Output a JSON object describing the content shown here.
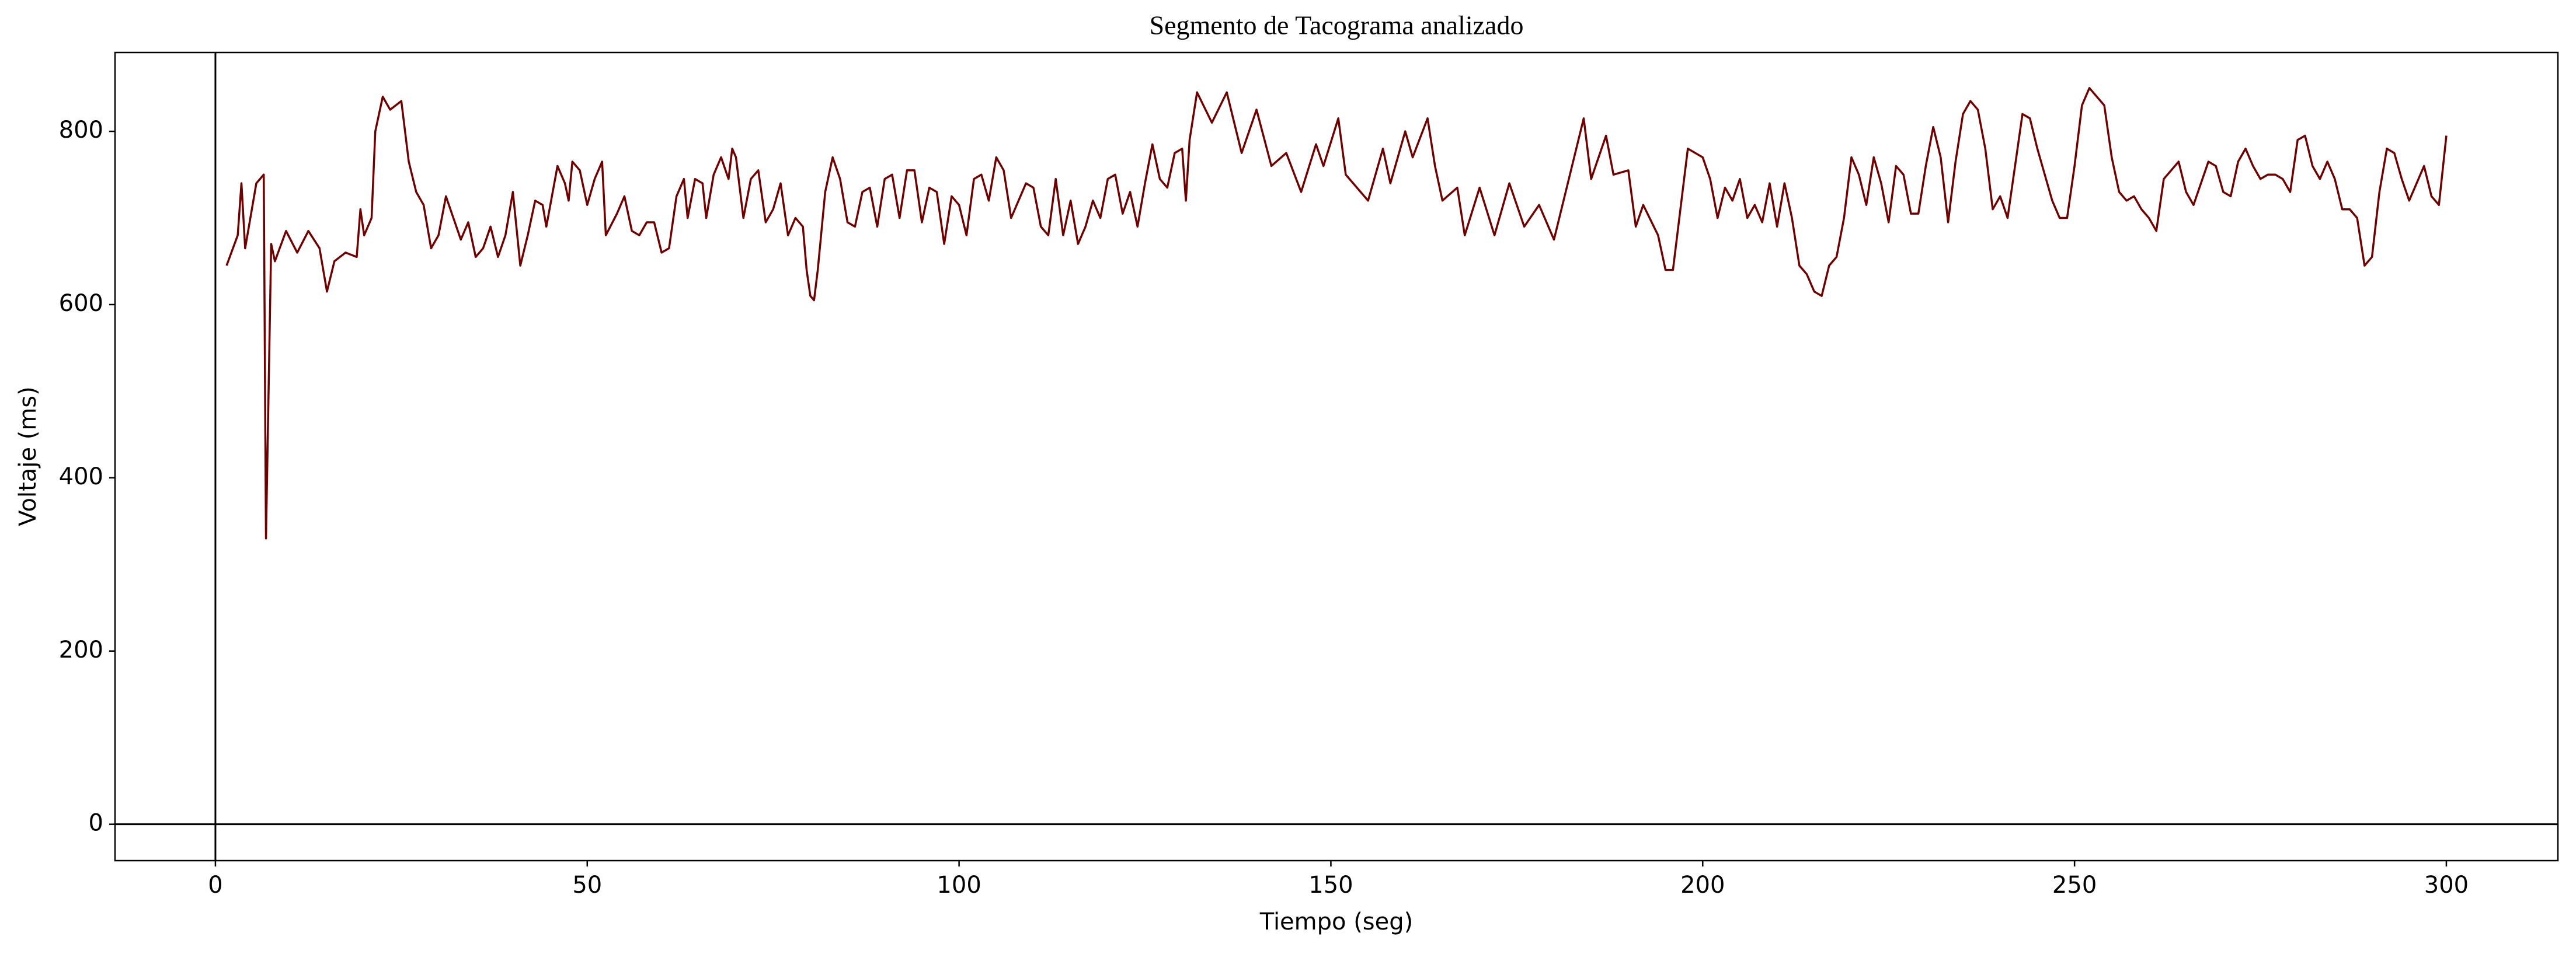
{
  "chart_data": {
    "type": "line",
    "title": "Segmento de Tacograma analizado",
    "x_label": "Tiempo (seg)",
    "y_label": "Voltaje (ms)",
    "color": "#6e0000",
    "x": [
      1.5,
      3,
      3.5,
      4,
      5.5,
      6.5,
      6.8,
      7.5,
      8,
      9.5,
      11,
      12.5,
      14,
      15,
      16,
      17.5,
      19,
      19.5,
      20,
      21,
      21.5,
      22.5,
      23.5,
      25,
      26,
      27,
      28,
      29,
      30,
      31,
      32,
      33,
      34,
      35,
      36,
      37,
      38,
      39,
      40,
      41,
      42,
      43,
      44,
      44.5,
      46,
      47,
      47.5,
      48,
      49,
      50,
      51,
      52,
      52.5,
      54,
      55,
      56,
      57,
      58,
      59,
      60,
      61,
      62,
      63,
      63.5,
      64.5,
      65.5,
      66,
      67,
      68,
      69,
      69.5,
      70,
      71,
      72,
      73,
      74,
      75,
      76,
      77,
      78,
      79,
      79.5,
      80,
      80.5,
      81,
      82,
      83,
      84,
      85,
      86,
      87,
      88,
      89,
      90,
      91,
      92,
      93,
      94,
      95,
      96,
      97,
      98,
      99,
      100,
      101,
      102,
      103,
      104,
      105,
      106,
      107,
      108,
      109,
      110,
      111,
      112,
      113,
      114,
      115,
      116,
      117,
      118,
      119,
      120,
      121,
      122,
      123,
      124,
      125,
      126,
      127,
      128,
      129,
      130,
      130.5,
      131,
      132,
      134,
      136,
      138,
      140,
      142,
      144,
      146,
      148,
      149,
      151,
      152,
      155,
      157,
      158,
      160,
      161,
      163,
      164,
      165,
      167,
      168,
      170,
      172,
      174,
      176,
      178,
      180,
      182,
      184,
      185,
      187,
      188,
      190,
      191,
      192,
      194,
      195,
      196,
      198,
      200,
      201,
      202,
      203,
      204,
      205,
      206,
      207,
      208,
      209,
      210,
      211,
      212,
      213,
      214,
      215,
      216,
      217,
      218,
      219,
      220,
      221,
      222,
      223,
      224,
      225,
      226,
      227,
      228,
      229,
      230,
      231,
      232,
      233,
      234,
      235,
      236,
      237,
      238,
      239,
      240,
      241,
      242,
      243,
      244,
      245,
      246,
      247,
      248,
      249,
      250,
      251,
      252,
      253,
      254,
      255,
      256,
      257,
      258,
      259,
      260,
      261,
      262,
      263,
      264,
      265,
      266,
      267,
      268,
      269,
      270,
      271,
      272,
      273,
      274,
      275,
      276,
      277,
      278,
      279,
      280,
      281,
      282,
      283,
      284,
      285,
      286,
      287,
      288,
      289,
      290,
      291,
      292,
      293,
      294,
      295,
      296,
      297,
      298,
      299,
      300
    ],
    "values": [
      645,
      680,
      740,
      665,
      740,
      750,
      330,
      670,
      650,
      685,
      660,
      685,
      665,
      615,
      650,
      660,
      655,
      710,
      680,
      700,
      800,
      840,
      825,
      835,
      765,
      730,
      715,
      665,
      680,
      725,
      700,
      675,
      695,
      655,
      665,
      690,
      655,
      680,
      730,
      645,
      680,
      720,
      715,
      690,
      760,
      740,
      720,
      765,
      755,
      715,
      745,
      765,
      680,
      705,
      725,
      685,
      680,
      695,
      695,
      660,
      665,
      725,
      745,
      700,
      745,
      740,
      700,
      750,
      770,
      745,
      780,
      770,
      700,
      745,
      755,
      695,
      710,
      740,
      680,
      700,
      690,
      640,
      610,
      605,
      640,
      730,
      770,
      745,
      695,
      690,
      730,
      735,
      690,
      745,
      750,
      700,
      755,
      755,
      695,
      735,
      730,
      670,
      725,
      715,
      680,
      745,
      750,
      720,
      770,
      755,
      700,
      720,
      740,
      735,
      690,
      680,
      745,
      680,
      720,
      670,
      690,
      720,
      700,
      745,
      750,
      705,
      730,
      690,
      740,
      785,
      745,
      735,
      775,
      780,
      720,
      790,
      845,
      810,
      845,
      775,
      825,
      760,
      775,
      730,
      785,
      760,
      815,
      750,
      720,
      780,
      740,
      800,
      770,
      815,
      760,
      720,
      735,
      680,
      735,
      680,
      740,
      690,
      715,
      675,
      745,
      815,
      745,
      795,
      750,
      755,
      690,
      715,
      680,
      640,
      640,
      780,
      770,
      745,
      700,
      735,
      720,
      745,
      700,
      715,
      695,
      740,
      690,
      740,
      700,
      645,
      635,
      615,
      610,
      645,
      655,
      700,
      770,
      750,
      715,
      770,
      740,
      695,
      760,
      750,
      705,
      705,
      760,
      805,
      770,
      695,
      765,
      820,
      835,
      825,
      780,
      710,
      725,
      700,
      760,
      820,
      815,
      780,
      750,
      720,
      700,
      700,
      760,
      830,
      850,
      840,
      830,
      770,
      730,
      720,
      725,
      710,
      700,
      685,
      745,
      755,
      765,
      730,
      715,
      740,
      765,
      760,
      730,
      725,
      765,
      780,
      760,
      745,
      750,
      750,
      745,
      730,
      790,
      795,
      760,
      745,
      765,
      745,
      710,
      710,
      700,
      645,
      655,
      730,
      780,
      775,
      745,
      720,
      740,
      760,
      725,
      715,
      795
    ],
    "xlim": [
      -13.5,
      315
    ],
    "ylim": [
      -42,
      891
    ],
    "xticks": [
      0,
      50,
      100,
      150,
      200,
      250,
      300
    ],
    "yticks": [
      0,
      200,
      400,
      600,
      800
    ],
    "hline": 0,
    "vline": 0,
    "grid": false
  }
}
